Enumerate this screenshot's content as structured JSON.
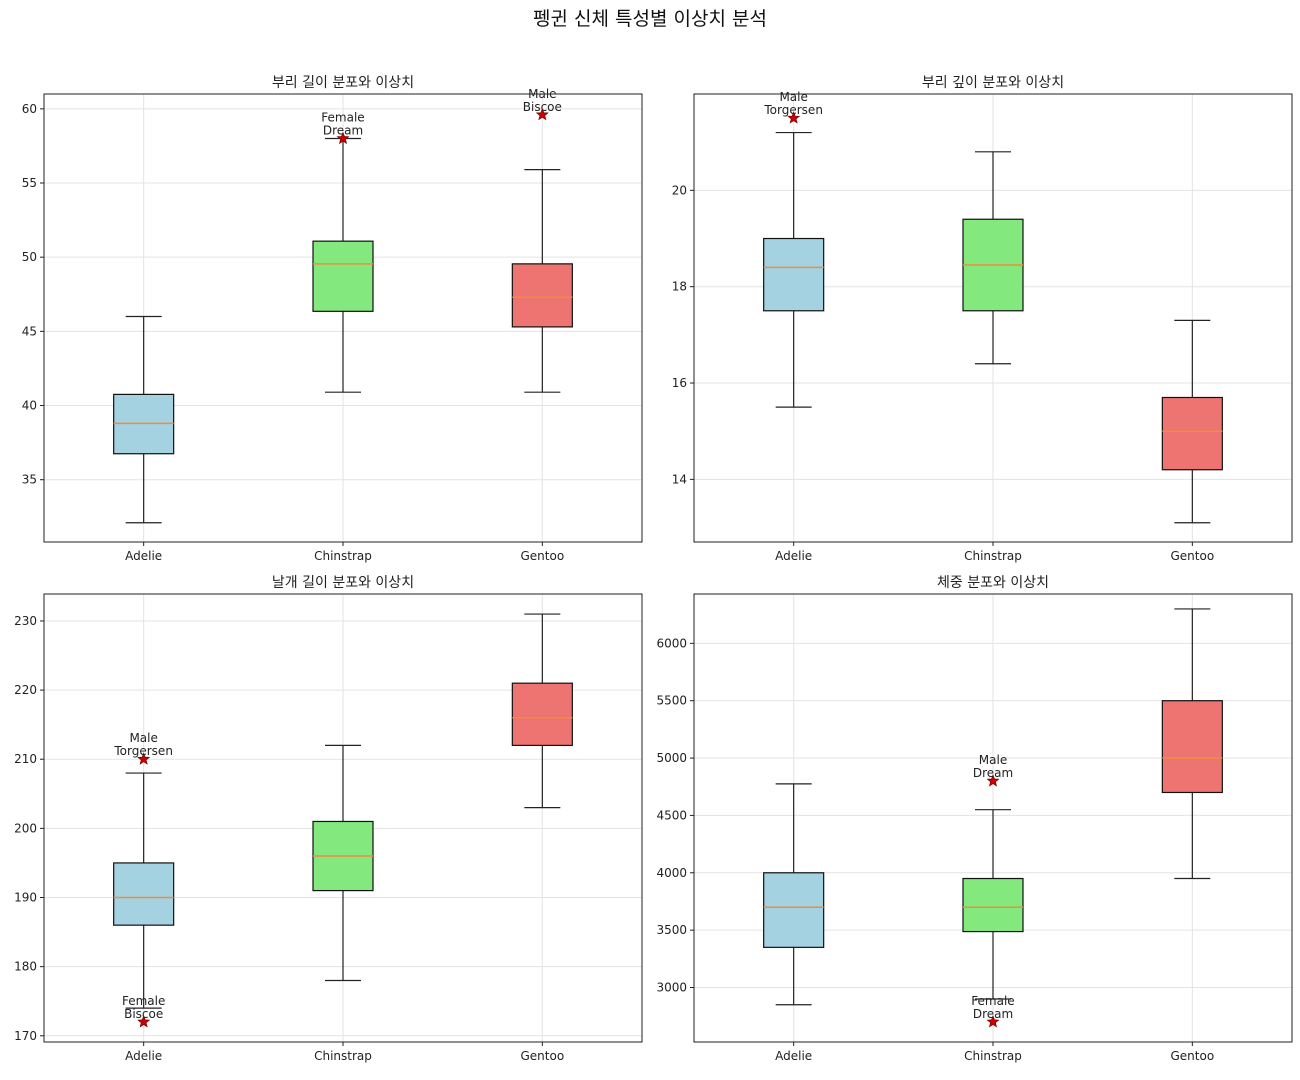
{
  "figure": {
    "title": "펭귄 신체 특성별 이상치 분석"
  },
  "colors": {
    "Adelie": "#a5d2e1",
    "Chinstrap": "#83e87e",
    "Gentoo": "#ee7471",
    "median": "#f08c3c",
    "outlier": "#cc0000"
  },
  "chart_data": [
    {
      "type": "box",
      "title": "부리 길이 분포와 이상치",
      "xlabel": "",
      "ylabel": "",
      "categories": [
        "Adelie",
        "Chinstrap",
        "Gentoo"
      ],
      "ylim": [
        30.8,
        61
      ],
      "yticks": [
        35,
        40,
        45,
        50,
        55,
        60
      ],
      "grid": true,
      "boxes": [
        {
          "category": "Adelie",
          "whislo": 32.1,
          "q1": 36.75,
          "med": 38.8,
          "q3": 40.75,
          "whishi": 46.0
        },
        {
          "category": "Chinstrap",
          "whislo": 40.9,
          "q1": 46.35,
          "med": 49.55,
          "q3": 51.08,
          "whishi": 58.0
        },
        {
          "category": "Gentoo",
          "whislo": 40.9,
          "q1": 45.3,
          "med": 47.3,
          "q3": 49.55,
          "whishi": 55.9
        }
      ],
      "outliers": [
        {
          "category": "Chinstrap",
          "value": 58.0,
          "sex": "Female",
          "island": "Dream"
        },
        {
          "category": "Gentoo",
          "value": 59.6,
          "sex": "Male",
          "island": "Biscoe"
        }
      ]
    },
    {
      "type": "box",
      "title": "부리 깊이 분포와 이상치",
      "xlabel": "",
      "ylabel": "",
      "categories": [
        "Adelie",
        "Chinstrap",
        "Gentoo"
      ],
      "ylim": [
        12.7,
        22.0
      ],
      "yticks": [
        14,
        16,
        18,
        20
      ],
      "grid": true,
      "boxes": [
        {
          "category": "Adelie",
          "whislo": 15.5,
          "q1": 17.5,
          "med": 18.4,
          "q3": 19.0,
          "whishi": 21.2
        },
        {
          "category": "Chinstrap",
          "whislo": 16.4,
          "q1": 17.5,
          "med": 18.45,
          "q3": 19.4,
          "whishi": 20.8
        },
        {
          "category": "Gentoo",
          "whislo": 13.1,
          "q1": 14.2,
          "med": 15.0,
          "q3": 15.7,
          "whishi": 17.3
        }
      ],
      "outliers": [
        {
          "category": "Adelie",
          "value": 21.5,
          "sex": "Male",
          "island": "Torgersen"
        }
      ]
    },
    {
      "type": "box",
      "title": "날개 길이 분포와 이상치",
      "xlabel": "",
      "ylabel": "",
      "categories": [
        "Adelie",
        "Chinstrap",
        "Gentoo"
      ],
      "ylim": [
        169.1,
        233.9
      ],
      "yticks": [
        170,
        180,
        190,
        200,
        210,
        220,
        230
      ],
      "grid": true,
      "boxes": [
        {
          "category": "Adelie",
          "whislo": 174,
          "q1": 186,
          "med": 190,
          "q3": 195,
          "whishi": 208
        },
        {
          "category": "Chinstrap",
          "whislo": 178,
          "q1": 191,
          "med": 196,
          "q3": 201,
          "whishi": 212
        },
        {
          "category": "Gentoo",
          "whislo": 203,
          "q1": 212,
          "med": 216,
          "q3": 221,
          "whishi": 231
        }
      ],
      "outliers": [
        {
          "category": "Adelie",
          "value": 210,
          "sex": "Male",
          "island": "Torgersen"
        },
        {
          "category": "Adelie",
          "value": 172,
          "sex": "Female",
          "island": "Biscoe"
        }
      ]
    },
    {
      "type": "box",
      "title": "체중 분포와 이상치",
      "xlabel": "",
      "ylabel": "",
      "categories": [
        "Adelie",
        "Chinstrap",
        "Gentoo"
      ],
      "ylim": [
        2525,
        6430
      ],
      "yticks": [
        3000,
        3500,
        4000,
        4500,
        5000,
        5500,
        6000
      ],
      "grid": true,
      "boxes": [
        {
          "category": "Adelie",
          "whislo": 2850,
          "q1": 3350,
          "med": 3700,
          "q3": 4000,
          "whishi": 4775
        },
        {
          "category": "Chinstrap",
          "whislo": 2900,
          "q1": 3487.5,
          "med": 3700,
          "q3": 3950,
          "whishi": 4550
        },
        {
          "category": "Gentoo",
          "whislo": 3950,
          "q1": 4700,
          "med": 5000,
          "q3": 5500,
          "whishi": 6300
        }
      ],
      "outliers": [
        {
          "category": "Chinstrap",
          "value": 4800,
          "sex": "Male",
          "island": "Dream"
        },
        {
          "category": "Chinstrap",
          "value": 2700,
          "sex": "Female",
          "island": "Dream"
        }
      ]
    }
  ]
}
